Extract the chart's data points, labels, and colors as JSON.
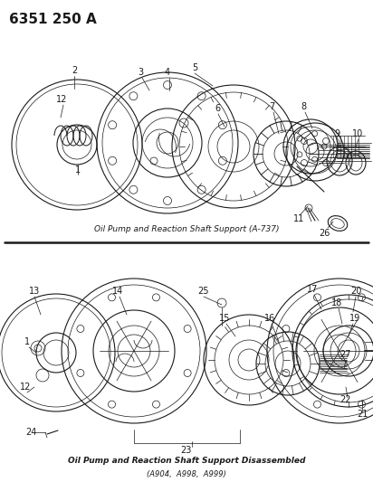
{
  "title": "6351 250 A",
  "bg_color": "#ffffff",
  "line_color": "#1a1a1a",
  "fig_width": 4.12,
  "fig_height": 5.33,
  "dpi": 100,
  "caption1": "Oil Pump and Reaction Shaft Support (A-737)",
  "caption2": "Oil Pump and Reaction Shaft Support Disassembled",
  "caption3": "(A904,  A998,  A999)"
}
